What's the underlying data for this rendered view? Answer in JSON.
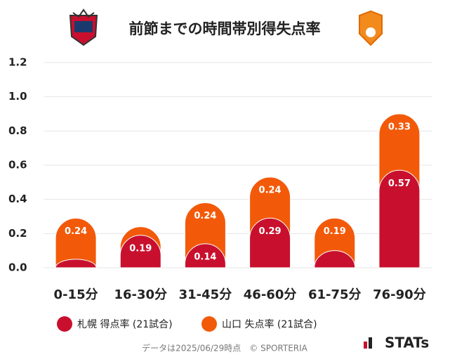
{
  "chart_data": {
    "type": "stacked_bar",
    "title": "前節までの時間帯別得失点率",
    "categories": [
      "0-15分",
      "16-30分",
      "31-45分",
      "46-60分",
      "61-75分",
      "76-90分"
    ],
    "series": [
      {
        "name": "札幌 得点率 (21試合)",
        "color": "#c8102e",
        "values": [
          0.05,
          0.19,
          0.14,
          0.29,
          0.1,
          0.57
        ],
        "value_labels": [
          null,
          "0.19",
          "0.14",
          "0.29",
          null,
          "0.57"
        ]
      },
      {
        "name": "山口 失点率 (21試合)",
        "color": "#f25a0a",
        "values": [
          0.24,
          0.05,
          0.24,
          0.24,
          0.19,
          0.33
        ],
        "value_labels": [
          "0.24",
          null,
          "0.24",
          "0.24",
          "0.19",
          "0.33"
        ]
      }
    ],
    "ylim": [
      0,
      1.2
    ],
    "yticks": [
      {
        "value": 0,
        "label": "0.0"
      },
      0.2,
      0.4,
      0.6,
      0.8,
      {
        "value": 1,
        "label": "1.0"
      },
      1.2
    ],
    "grid": true,
    "footnote": "データは2025/06/29時点　© SPORTERIA",
    "brand": "STATs"
  }
}
